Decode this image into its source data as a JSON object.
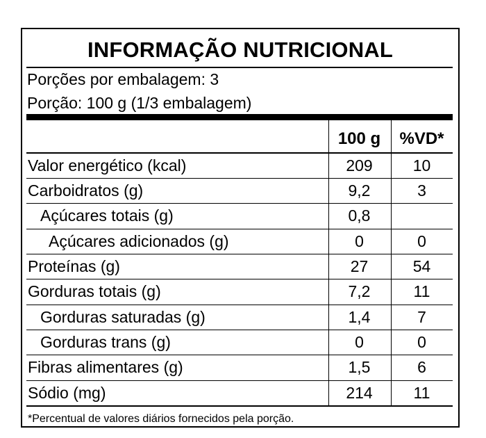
{
  "label": {
    "title": "INFORMAÇÃO NUTRICIONAL",
    "servings_per_package": "Porções por embalagem: 3",
    "serving_size": "Porção: 100 g (1/3 embalagem)",
    "header": {
      "col_amount": "100 g",
      "col_dv": "%VD*"
    },
    "rows": [
      {
        "nutrient": "Valor energético (kcal)",
        "amount": "209",
        "dv": "10"
      },
      {
        "nutrient": "Carboidratos (g)",
        "amount": "9,2",
        "dv": "3"
      },
      {
        "nutrient": "Açúcares totais (g)",
        "amount": "0,8",
        "dv": ""
      },
      {
        "nutrient": "Açúcares adicionados (g)",
        "amount": "0",
        "dv": "0"
      },
      {
        "nutrient": "Proteínas (g)",
        "amount": "27",
        "dv": "54"
      },
      {
        "nutrient": "Gorduras totais (g)",
        "amount": "7,2",
        "dv": "11"
      },
      {
        "nutrient": "Gorduras saturadas (g)",
        "amount": "1,4",
        "dv": "7"
      },
      {
        "nutrient": "Gorduras trans (g)",
        "amount": "0",
        "dv": "0"
      },
      {
        "nutrient": "Fibras alimentares (g)",
        "amount": "1,5",
        "dv": "6"
      },
      {
        "nutrient": "Sódio (mg)",
        "amount": "214",
        "dv": "11"
      }
    ],
    "footnote": "*Percentual de valores diários fornecidos pela porção."
  }
}
